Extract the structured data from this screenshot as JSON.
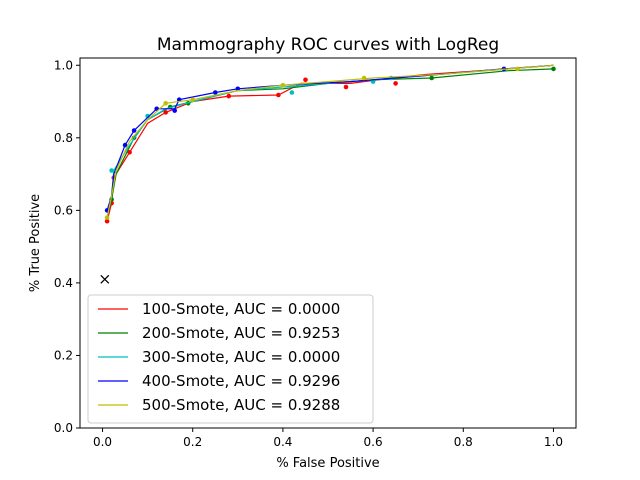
{
  "chart_data": {
    "type": "line",
    "title": "Mammography ROC curves with LogReg",
    "xlabel": "% False Positive",
    "ylabel": "% True Positive",
    "xlim": [
      -0.05,
      1.05
    ],
    "ylim": [
      0.0,
      1.02
    ],
    "xticks": [
      "0.0",
      "0.2",
      "0.4",
      "0.6",
      "0.8",
      "1.0"
    ],
    "yticks": [
      "0.0",
      "0.2",
      "0.4",
      "0.6",
      "0.8",
      "1.0"
    ],
    "grid": false,
    "legend_position": "lower-left",
    "annotations": [
      {
        "type": "marker",
        "symbol": "x",
        "x": 0.005,
        "y": 0.41,
        "color": "#000000"
      }
    ],
    "series": [
      {
        "name": "100-Smote, AUC = 0.0000",
        "color": "#ff0000",
        "line": [
          [
            0.01,
            0.57
          ],
          [
            0.02,
            0.62
          ],
          [
            0.025,
            0.69
          ],
          [
            0.06,
            0.76
          ],
          [
            0.1,
            0.84
          ],
          [
            0.14,
            0.87
          ],
          [
            0.2,
            0.9
          ],
          [
            0.28,
            0.915
          ],
          [
            0.39,
            0.918
          ],
          [
            0.44,
            0.95
          ],
          [
            0.55,
            0.95
          ],
          [
            0.64,
            0.965
          ],
          [
            0.72,
            0.975
          ],
          [
            0.9,
            0.99
          ],
          [
            1.0,
            1.0
          ]
        ],
        "points": [
          [
            0.01,
            0.57
          ],
          [
            0.02,
            0.62
          ],
          [
            0.025,
            0.69
          ],
          [
            0.06,
            0.76
          ],
          [
            0.14,
            0.87
          ],
          [
            0.28,
            0.915
          ],
          [
            0.39,
            0.918
          ],
          [
            0.45,
            0.96
          ],
          [
            0.54,
            0.94
          ],
          [
            0.65,
            0.95
          ]
        ]
      },
      {
        "name": "200-Smote, AUC = 0.9253",
        "color": "#008000",
        "line": [
          [
            0.01,
            0.58
          ],
          [
            0.02,
            0.63
          ],
          [
            0.03,
            0.7
          ],
          [
            0.07,
            0.8
          ],
          [
            0.1,
            0.85
          ],
          [
            0.15,
            0.885
          ],
          [
            0.2,
            0.9
          ],
          [
            0.3,
            0.93
          ],
          [
            0.4,
            0.935
          ],
          [
            0.5,
            0.95
          ],
          [
            0.6,
            0.96
          ],
          [
            0.73,
            0.965
          ],
          [
            0.9,
            0.985
          ],
          [
            1.0,
            0.99
          ]
        ],
        "points": [
          [
            0.02,
            0.63
          ],
          [
            0.07,
            0.8
          ],
          [
            0.15,
            0.885
          ],
          [
            0.19,
            0.895
          ],
          [
            0.73,
            0.965
          ],
          [
            1.0,
            0.99
          ]
        ]
      },
      {
        "name": "300-Smote, AUC = 0.0000",
        "color": "#00bfbf",
        "line": [
          [
            0.01,
            0.58
          ],
          [
            0.02,
            0.64
          ],
          [
            0.025,
            0.71
          ],
          [
            0.06,
            0.78
          ],
          [
            0.1,
            0.85
          ],
          [
            0.14,
            0.88
          ],
          [
            0.2,
            0.9
          ],
          [
            0.3,
            0.93
          ],
          [
            0.4,
            0.94
          ],
          [
            0.5,
            0.95
          ],
          [
            0.65,
            0.965
          ],
          [
            0.8,
            0.98
          ],
          [
            1.0,
            1.0
          ]
        ],
        "points": [
          [
            0.02,
            0.71
          ],
          [
            0.1,
            0.86
          ],
          [
            0.42,
            0.925
          ],
          [
            0.6,
            0.955
          ],
          [
            0.64,
            0.965
          ]
        ]
      },
      {
        "name": "400-Smote, AUC = 0.9296",
        "color": "#0000ff",
        "line": [
          [
            0.01,
            0.6
          ],
          [
            0.02,
            0.64
          ],
          [
            0.025,
            0.7
          ],
          [
            0.05,
            0.78
          ],
          [
            0.07,
            0.82
          ],
          [
            0.12,
            0.88
          ],
          [
            0.16,
            0.88
          ],
          [
            0.17,
            0.905
          ],
          [
            0.25,
            0.925
          ],
          [
            0.3,
            0.935
          ],
          [
            0.4,
            0.945
          ],
          [
            0.55,
            0.955
          ],
          [
            0.7,
            0.97
          ],
          [
            0.89,
            0.99
          ],
          [
            1.0,
            1.0
          ]
        ],
        "points": [
          [
            0.01,
            0.6
          ],
          [
            0.05,
            0.78
          ],
          [
            0.07,
            0.82
          ],
          [
            0.12,
            0.88
          ],
          [
            0.16,
            0.875
          ],
          [
            0.17,
            0.905
          ],
          [
            0.25,
            0.925
          ],
          [
            0.3,
            0.935
          ],
          [
            0.89,
            0.99
          ]
        ]
      },
      {
        "name": "500-Smote, AUC = 0.9288",
        "color": "#bfbf00",
        "line": [
          [
            0.01,
            0.58
          ],
          [
            0.02,
            0.64
          ],
          [
            0.03,
            0.71
          ],
          [
            0.06,
            0.79
          ],
          [
            0.1,
            0.85
          ],
          [
            0.14,
            0.895
          ],
          [
            0.2,
            0.905
          ],
          [
            0.3,
            0.93
          ],
          [
            0.4,
            0.945
          ],
          [
            0.5,
            0.955
          ],
          [
            0.6,
            0.965
          ],
          [
            0.75,
            0.975
          ],
          [
            0.9,
            0.99
          ],
          [
            1.0,
            1.0
          ]
        ],
        "points": [
          [
            0.01,
            0.58
          ],
          [
            0.14,
            0.895
          ],
          [
            0.2,
            0.905
          ],
          [
            0.4,
            0.945
          ],
          [
            0.58,
            0.965
          ],
          [
            0.92,
            0.99
          ]
        ]
      }
    ]
  }
}
